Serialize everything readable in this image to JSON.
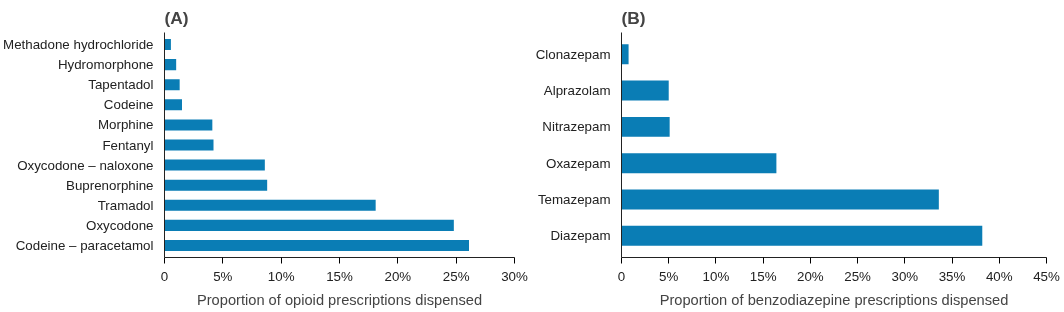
{
  "chart_data": [
    {
      "type": "bar",
      "orientation": "horizontal",
      "title": "(A)",
      "xlabel": "Proportion of opioid prescriptions dispensed",
      "categories": [
        "Methadone hydrochloride",
        "Hydromorphone",
        "Tapentadol",
        "Codeine",
        "Morphine",
        "Fentanyl",
        "Oxycodone – naloxone",
        "Buprenorphine",
        "Tramadol",
        "Oxycodone",
        "Codeine – paracetamol"
      ],
      "values": [
        0.55,
        1.0,
        1.3,
        1.5,
        4.1,
        4.2,
        8.6,
        8.8,
        18.1,
        24.8,
        26.1
      ],
      "color": "#0a7db5",
      "xlim": [
        0,
        30
      ],
      "xticks": [
        {
          "value": 0,
          "label": "0"
        },
        {
          "value": 5,
          "label": "5%"
        },
        {
          "value": 10,
          "label": "10%"
        },
        {
          "value": 15,
          "label": "15%"
        },
        {
          "value": 20,
          "label": "20%"
        },
        {
          "value": 25,
          "label": "25%"
        },
        {
          "value": 30,
          "label": "30%"
        }
      ],
      "grid": false
    },
    {
      "type": "bar",
      "orientation": "horizontal",
      "title": "(B)",
      "xlabel": "Proportion of benzodiazepine prescriptions dispensed",
      "categories": [
        "Clonazepam",
        "Alprazolam",
        "Nitrazepam",
        "Oxazepam",
        "Temazepam",
        "Diazepam"
      ],
      "values": [
        0.75,
        5.0,
        5.1,
        16.4,
        33.6,
        38.2
      ],
      "color": "#0a7db5",
      "xlim": [
        0,
        45
      ],
      "xticks": [
        {
          "value": 0,
          "label": "0"
        },
        {
          "value": 5,
          "label": "5%"
        },
        {
          "value": 10,
          "label": "10%"
        },
        {
          "value": 15,
          "label": "15%"
        },
        {
          "value": 20,
          "label": "20%"
        },
        {
          "value": 25,
          "label": "25%"
        },
        {
          "value": 30,
          "label": "30%"
        },
        {
          "value": 35,
          "label": "35%"
        },
        {
          "value": 40,
          "label": "40%"
        },
        {
          "value": 45,
          "label": "45%"
        }
      ],
      "grid": false
    }
  ]
}
